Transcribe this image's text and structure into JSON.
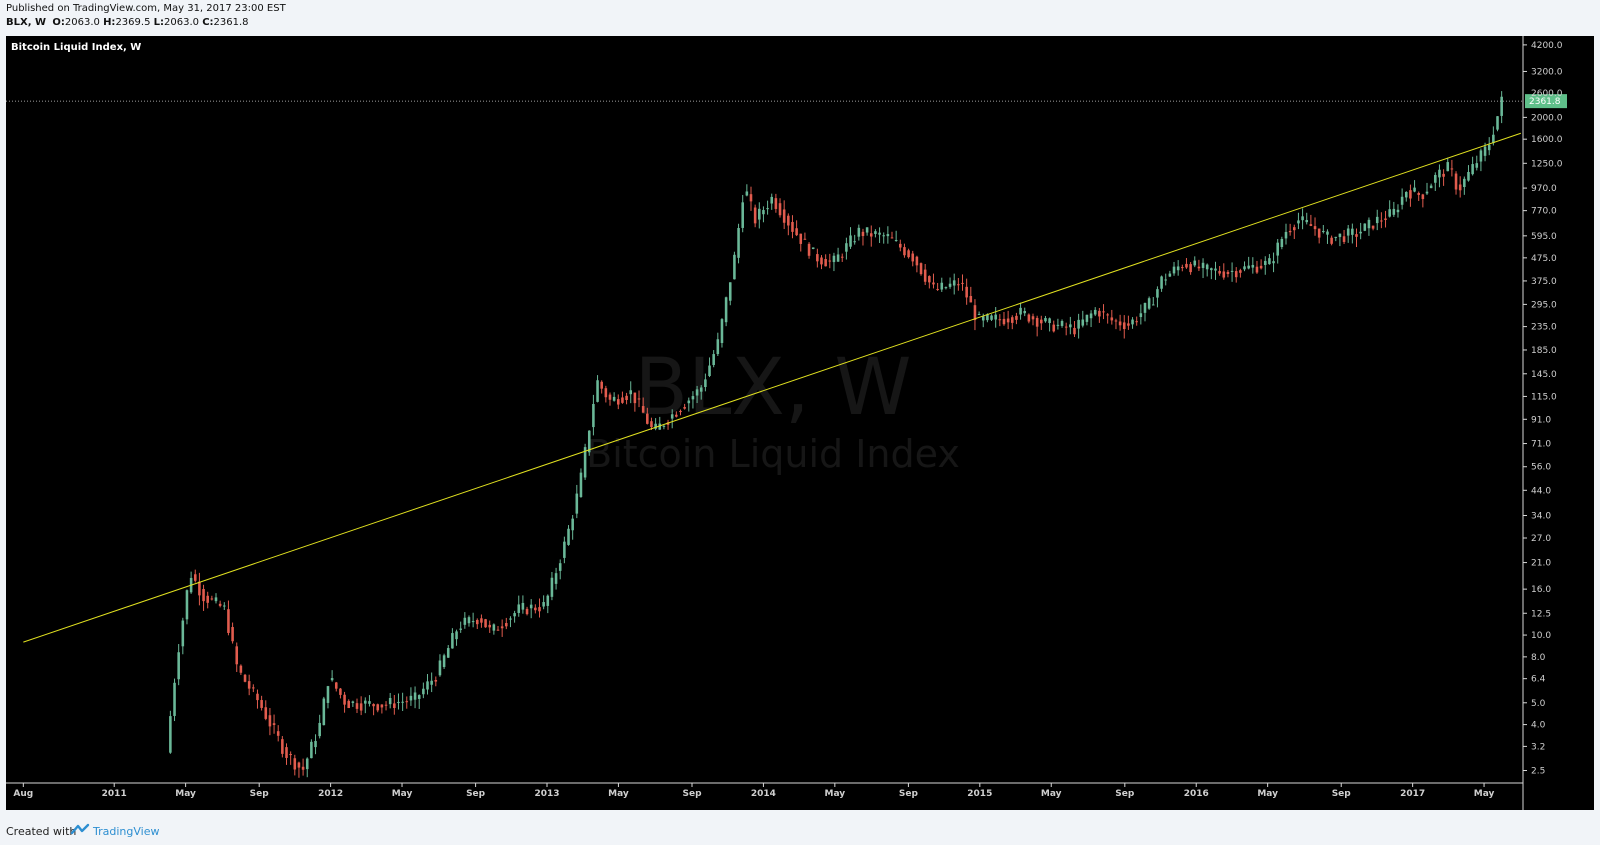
{
  "header": {
    "published": "Published on TradingView.com, May 31, 2017 23:00 EST",
    "symbol": "BLX, W",
    "open_label": "O:",
    "open": "2063.0",
    "high_label": "H:",
    "high": "2369.5",
    "low_label": "L:",
    "low": "2063.0",
    "close_label": "C:",
    "close": "2361.8"
  },
  "footer": {
    "created_with": "Created with",
    "brand": "TradingView"
  },
  "colors": {
    "background": "#000000",
    "up": "#6ab898",
    "down": "#e25c4e",
    "trendline": "#e0e020",
    "price_tag": "#5fbf8a"
  },
  "chart_data": {
    "type": "candlestick",
    "title": "Bitcoin Liquid Index, W",
    "watermark_symbol": "BLX, W",
    "watermark_name": "Bitcoin Liquid Index",
    "scale": "log",
    "grid": false,
    "ylim": [
      2.2,
      4600
    ],
    "x_range": [
      "2010-08",
      "2017-06"
    ],
    "y_ticks": [
      2.5,
      3.2,
      4.0,
      5.0,
      6.4,
      8.0,
      10.0,
      12.5,
      16.0,
      21.0,
      27.0,
      34.0,
      44.0,
      56.0,
      71.0,
      91.0,
      115.0,
      145.0,
      185.0,
      235.0,
      295.0,
      375.0,
      475.0,
      595.0,
      770.0,
      970.0,
      1250.0,
      1600.0,
      2000.0,
      3200.0,
      4200.0
    ],
    "y_tick_labels": [
      "2.5",
      "3.2",
      "4.0",
      "5.0",
      "6.4",
      "8.0",
      "10.0",
      "12.5",
      "16.0",
      "21.0",
      "27.0",
      "34.0",
      "44.0",
      "56.0",
      "71.0",
      "91.0",
      "115.0",
      "145.0",
      "185.0",
      "235.0",
      "295.0",
      "375.0",
      "475.0",
      "595.0",
      "770.0",
      "970.0",
      "1250.0",
      "1600.0",
      "2000.0",
      "3200.0",
      "4200.0"
    ],
    "x_ticks": [
      {
        "label": "Aug",
        "t": 2010.58
      },
      {
        "label": "2011",
        "t": 2011.0
      },
      {
        "label": "May",
        "t": 2011.33
      },
      {
        "label": "Sep",
        "t": 2011.67
      },
      {
        "label": "2012",
        "t": 2012.0
      },
      {
        "label": "May",
        "t": 2012.33
      },
      {
        "label": "Sep",
        "t": 2012.67
      },
      {
        "label": "2013",
        "t": 2013.0
      },
      {
        "label": "May",
        "t": 2013.33
      },
      {
        "label": "Sep",
        "t": 2013.67
      },
      {
        "label": "2014",
        "t": 2014.0
      },
      {
        "label": "May",
        "t": 2014.33
      },
      {
        "label": "Sep",
        "t": 2014.67
      },
      {
        "label": "2015",
        "t": 2015.0
      },
      {
        "label": "May",
        "t": 2015.33
      },
      {
        "label": "Sep",
        "t": 2015.67
      },
      {
        "label": "2016",
        "t": 2016.0
      },
      {
        "label": "May",
        "t": 2016.33
      },
      {
        "label": "Sep",
        "t": 2016.67
      },
      {
        "label": "2017",
        "t": 2017.0
      },
      {
        "label": "May",
        "t": 2017.33
      }
    ],
    "last_price": 2361.8,
    "last_price_label": "2361.8",
    "high_tag_label": "2600.0",
    "trendline": [
      {
        "t": 2010.58,
        "price": 9.3
      },
      {
        "t": 2017.5,
        "price": 1700
      }
    ],
    "price_anchors": [
      {
        "t": 2011.25,
        "price": 3.0
      },
      {
        "t": 2011.3,
        "price": 8.0
      },
      {
        "t": 2011.36,
        "price": 19
      },
      {
        "t": 2011.42,
        "price": 15
      },
      {
        "t": 2011.52,
        "price": 13
      },
      {
        "t": 2011.58,
        "price": 7
      },
      {
        "t": 2011.68,
        "price": 5
      },
      {
        "t": 2011.8,
        "price": 3
      },
      {
        "t": 2011.88,
        "price": 2.5
      },
      {
        "t": 2011.96,
        "price": 4
      },
      {
        "t": 2012.0,
        "price": 6.5
      },
      {
        "t": 2012.08,
        "price": 5
      },
      {
        "t": 2012.25,
        "price": 4.9
      },
      {
        "t": 2012.4,
        "price": 5.2
      },
      {
        "t": 2012.5,
        "price": 6.7
      },
      {
        "t": 2012.6,
        "price": 11
      },
      {
        "t": 2012.7,
        "price": 12
      },
      {
        "t": 2012.75,
        "price": 10.3
      },
      {
        "t": 2012.88,
        "price": 13
      },
      {
        "t": 2013.0,
        "price": 13.5
      },
      {
        "t": 2013.1,
        "price": 27
      },
      {
        "t": 2013.16,
        "price": 46
      },
      {
        "t": 2013.24,
        "price": 135
      },
      {
        "t": 2013.3,
        "price": 110
      },
      {
        "t": 2013.4,
        "price": 120
      },
      {
        "t": 2013.5,
        "price": 80
      },
      {
        "t": 2013.56,
        "price": 90
      },
      {
        "t": 2013.72,
        "price": 125
      },
      {
        "t": 2013.8,
        "price": 200
      },
      {
        "t": 2013.88,
        "price": 500
      },
      {
        "t": 2013.92,
        "price": 1000
      },
      {
        "t": 2013.97,
        "price": 700
      },
      {
        "t": 2014.05,
        "price": 880
      },
      {
        "t": 2014.15,
        "price": 630
      },
      {
        "t": 2014.25,
        "price": 480
      },
      {
        "t": 2014.33,
        "price": 450
      },
      {
        "t": 2014.45,
        "price": 620
      },
      {
        "t": 2014.58,
        "price": 590
      },
      {
        "t": 2014.7,
        "price": 480
      },
      {
        "t": 2014.8,
        "price": 340
      },
      {
        "t": 2014.92,
        "price": 370
      },
      {
        "t": 2015.0,
        "price": 250
      },
      {
        "t": 2015.12,
        "price": 255
      },
      {
        "t": 2015.2,
        "price": 270
      },
      {
        "t": 2015.33,
        "price": 240
      },
      {
        "t": 2015.45,
        "price": 230
      },
      {
        "t": 2015.55,
        "price": 280
      },
      {
        "t": 2015.62,
        "price": 250
      },
      {
        "t": 2015.7,
        "price": 240
      },
      {
        "t": 2015.8,
        "price": 300
      },
      {
        "t": 2015.85,
        "price": 380
      },
      {
        "t": 2015.95,
        "price": 450
      },
      {
        "t": 2016.05,
        "price": 420
      },
      {
        "t": 2016.15,
        "price": 410
      },
      {
        "t": 2016.35,
        "price": 450
      },
      {
        "t": 2016.42,
        "price": 620
      },
      {
        "t": 2016.48,
        "price": 700
      },
      {
        "t": 2016.55,
        "price": 650
      },
      {
        "t": 2016.62,
        "price": 580
      },
      {
        "t": 2016.75,
        "price": 610
      },
      {
        "t": 2016.85,
        "price": 700
      },
      {
        "t": 2016.92,
        "price": 750
      },
      {
        "t": 2016.98,
        "price": 950
      },
      {
        "t": 2017.05,
        "price": 900
      },
      {
        "t": 2017.12,
        "price": 1100
      },
      {
        "t": 2017.18,
        "price": 1200
      },
      {
        "t": 2017.22,
        "price": 950
      },
      {
        "t": 2017.3,
        "price": 1250
      },
      {
        "t": 2017.36,
        "price": 1500
      },
      {
        "t": 2017.4,
        "price": 2000
      },
      {
        "t": 2017.42,
        "price": 2361.8
      }
    ]
  }
}
